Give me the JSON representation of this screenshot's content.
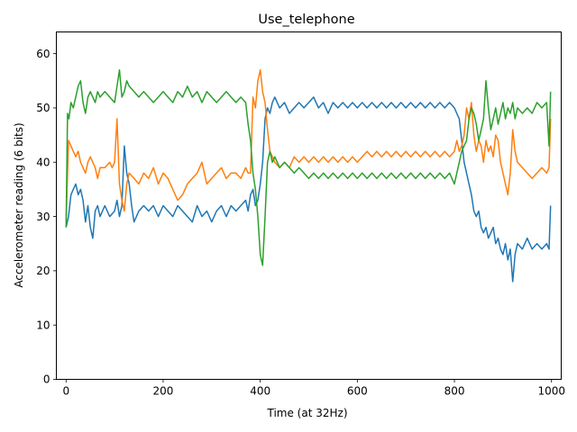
{
  "chart_data": {
    "type": "line",
    "title": "Use_telephone",
    "xlabel": "Time (at 32Hz)",
    "ylabel": "Accelerometer reading (6 bits)",
    "xlim": [
      -20,
      1020
    ],
    "ylim": [
      0,
      64
    ],
    "xticks": [
      0,
      200,
      400,
      600,
      800,
      1000
    ],
    "yticks": [
      0,
      10,
      20,
      30,
      40,
      50,
      60
    ],
    "grid": false,
    "legend": "none",
    "series": [
      {
        "color": "#1f77b4",
        "x": [
          0,
          5,
          10,
          15,
          20,
          25,
          30,
          35,
          40,
          45,
          50,
          55,
          60,
          65,
          70,
          80,
          90,
          100,
          105,
          110,
          115,
          120,
          125,
          130,
          135,
          140,
          150,
          160,
          170,
          180,
          190,
          200,
          210,
          220,
          230,
          240,
          250,
          260,
          270,
          280,
          290,
          300,
          310,
          320,
          330,
          340,
          350,
          360,
          370,
          375,
          380,
          385,
          390,
          395,
          400,
          405,
          410,
          415,
          420,
          425,
          430,
          440,
          450,
          460,
          470,
          480,
          490,
          500,
          510,
          520,
          530,
          540,
          550,
          560,
          570,
          580,
          590,
          600,
          610,
          620,
          630,
          640,
          650,
          660,
          670,
          680,
          690,
          700,
          710,
          720,
          730,
          740,
          750,
          760,
          770,
          780,
          790,
          800,
          805,
          810,
          815,
          820,
          825,
          830,
          835,
          840,
          845,
          850,
          855,
          860,
          865,
          870,
          875,
          880,
          885,
          890,
          895,
          900,
          905,
          910,
          915,
          920,
          925,
          930,
          940,
          950,
          960,
          970,
          980,
          990,
          995,
          998
        ],
        "y": [
          28,
          30,
          34,
          35,
          36,
          34,
          35,
          33,
          29,
          32,
          28,
          26,
          31,
          32,
          30,
          32,
          30,
          31,
          33,
          30,
          32,
          43,
          38,
          36,
          32,
          29,
          31,
          32,
          31,
          32,
          30,
          32,
          31,
          30,
          32,
          31,
          30,
          29,
          32,
          30,
          31,
          29,
          31,
          32,
          30,
          32,
          31,
          32,
          33,
          31,
          34,
          35,
          32,
          33,
          36,
          40,
          48,
          50,
          49,
          51,
          52,
          50,
          51,
          49,
          50,
          51,
          50,
          51,
          52,
          50,
          51,
          49,
          51,
          50,
          51,
          50,
          51,
          50,
          51,
          50,
          51,
          50,
          51,
          50,
          51,
          50,
          51,
          50,
          51,
          50,
          51,
          50,
          51,
          50,
          51,
          50,
          51,
          50,
          49,
          48,
          44,
          40,
          38,
          36,
          34,
          31,
          30,
          31,
          28,
          27,
          28,
          26,
          27,
          28,
          25,
          26,
          24,
          23,
          25,
          22,
          24,
          18,
          23,
          25,
          24,
          26,
          24,
          25,
          24,
          25,
          24,
          32
        ]
      },
      {
        "color": "#ff7f0e",
        "x": [
          0,
          5,
          10,
          15,
          20,
          25,
          30,
          35,
          40,
          45,
          50,
          55,
          60,
          65,
          70,
          80,
          90,
          95,
          100,
          105,
          110,
          115,
          120,
          125,
          130,
          140,
          150,
          160,
          170,
          180,
          190,
          200,
          210,
          220,
          230,
          240,
          250,
          260,
          270,
          280,
          290,
          300,
          310,
          320,
          330,
          340,
          350,
          360,
          370,
          375,
          380,
          385,
          390,
          395,
          400,
          405,
          410,
          415,
          420,
          425,
          430,
          440,
          450,
          460,
          470,
          480,
          490,
          500,
          510,
          520,
          530,
          540,
          550,
          560,
          570,
          580,
          590,
          600,
          610,
          620,
          630,
          640,
          650,
          660,
          670,
          680,
          690,
          700,
          710,
          720,
          730,
          740,
          750,
          760,
          770,
          780,
          790,
          800,
          805,
          810,
          815,
          820,
          825,
          830,
          835,
          840,
          845,
          850,
          855,
          860,
          865,
          870,
          875,
          880,
          885,
          890,
          895,
          900,
          905,
          910,
          915,
          920,
          925,
          930,
          940,
          950,
          960,
          970,
          980,
          990,
          995,
          998
        ],
        "y": [
          29,
          44,
          43,
          42,
          41,
          42,
          40,
          39,
          38,
          40,
          41,
          40,
          39,
          37,
          39,
          39,
          40,
          39,
          40,
          48,
          36,
          33,
          31,
          36,
          38,
          37,
          36,
          38,
          37,
          39,
          36,
          38,
          37,
          35,
          33,
          34,
          36,
          37,
          38,
          40,
          36,
          37,
          38,
          39,
          37,
          38,
          38,
          37,
          39,
          38,
          38,
          52,
          50,
          55,
          57,
          53,
          51,
          46,
          42,
          41,
          40,
          39,
          40,
          39,
          41,
          40,
          41,
          40,
          41,
          40,
          41,
          40,
          41,
          40,
          41,
          40,
          41,
          40,
          41,
          42,
          41,
          42,
          41,
          42,
          41,
          42,
          41,
          42,
          41,
          42,
          41,
          42,
          41,
          42,
          41,
          42,
          41,
          42,
          44,
          42,
          43,
          45,
          50,
          48,
          51,
          45,
          42,
          44,
          43,
          40,
          44,
          42,
          43,
          41,
          45,
          44,
          40,
          38,
          36,
          34,
          38,
          46,
          42,
          40,
          39,
          38,
          37,
          38,
          39,
          38,
          39,
          48
        ]
      },
      {
        "color": "#2ca02c",
        "x": [
          0,
          3,
          6,
          10,
          15,
          20,
          25,
          30,
          35,
          40,
          45,
          50,
          55,
          60,
          65,
          70,
          80,
          90,
          100,
          105,
          110,
          115,
          120,
          125,
          130,
          140,
          150,
          160,
          170,
          180,
          190,
          200,
          210,
          220,
          230,
          240,
          250,
          260,
          270,
          280,
          290,
          300,
          310,
          320,
          330,
          340,
          350,
          360,
          370,
          375,
          380,
          385,
          390,
          395,
          400,
          405,
          410,
          415,
          420,
          425,
          430,
          440,
          450,
          460,
          470,
          480,
          490,
          500,
          510,
          520,
          530,
          540,
          550,
          560,
          570,
          580,
          590,
          600,
          610,
          620,
          630,
          640,
          650,
          660,
          670,
          680,
          690,
          700,
          710,
          720,
          730,
          740,
          750,
          760,
          770,
          780,
          790,
          800,
          805,
          810,
          815,
          820,
          825,
          830,
          835,
          840,
          845,
          850,
          855,
          860,
          865,
          870,
          875,
          880,
          885,
          890,
          895,
          900,
          905,
          910,
          915,
          920,
          925,
          930,
          940,
          950,
          960,
          970,
          980,
          990,
          995,
          998
        ],
        "y": [
          28,
          49,
          48,
          51,
          50,
          52,
          54,
          55,
          51,
          49,
          52,
          53,
          52,
          51,
          53,
          52,
          53,
          52,
          51,
          54,
          57,
          52,
          53,
          55,
          54,
          53,
          52,
          53,
          52,
          51,
          52,
          53,
          52,
          51,
          53,
          52,
          54,
          52,
          53,
          51,
          53,
          52,
          51,
          52,
          53,
          52,
          51,
          52,
          51,
          47,
          44,
          38,
          35,
          30,
          23,
          21,
          30,
          40,
          42,
          40,
          41,
          39,
          40,
          39,
          38,
          39,
          38,
          37,
          38,
          37,
          38,
          37,
          38,
          37,
          38,
          37,
          38,
          37,
          38,
          37,
          38,
          37,
          38,
          37,
          38,
          37,
          38,
          37,
          38,
          37,
          38,
          37,
          38,
          37,
          38,
          37,
          38,
          36,
          38,
          40,
          42,
          43,
          44,
          48,
          50,
          49,
          47,
          44,
          46,
          48,
          55,
          50,
          46,
          48,
          50,
          47,
          49,
          51,
          48,
          50,
          49,
          51,
          48,
          50,
          49,
          50,
          49,
          51,
          50,
          51,
          43,
          53
        ]
      }
    ]
  }
}
